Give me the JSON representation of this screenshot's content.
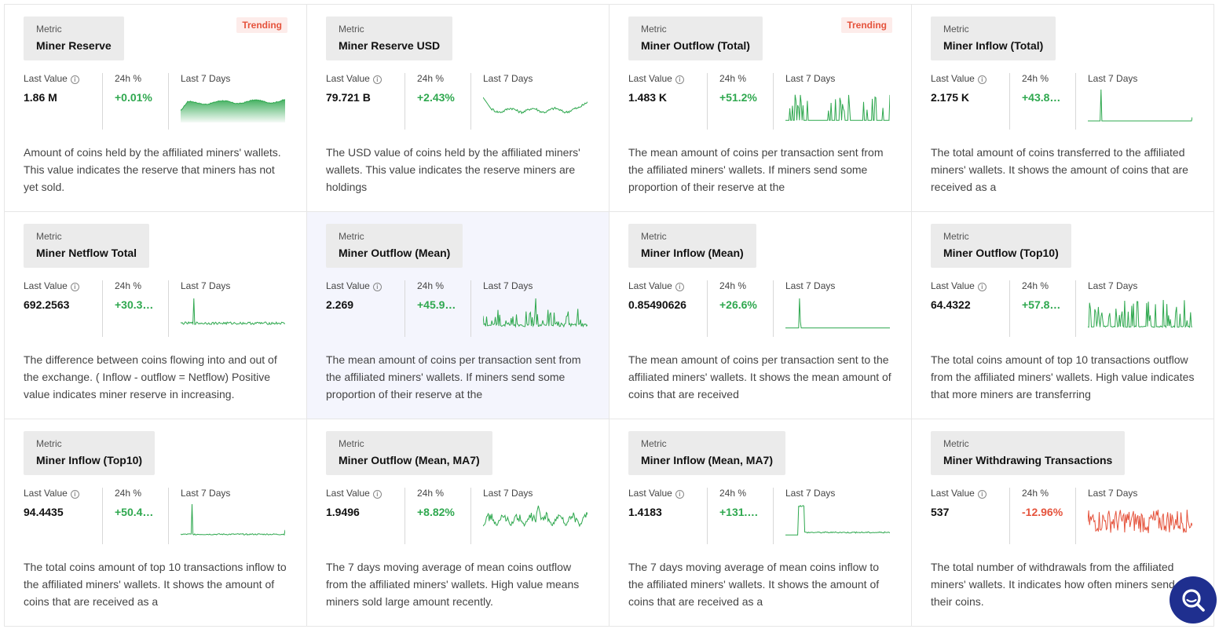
{
  "labels": {
    "category": "Metric",
    "last_value": "Last Value",
    "pct_24h": "24h %",
    "last_7_days": "Last 7 Days",
    "trending": "Trending"
  },
  "colors": {
    "up": "#2fa84f",
    "down": "#e5533c",
    "fab": "#1f2f8f"
  },
  "cards": [
    {
      "name": "Miner Reserve",
      "trending": true,
      "last_value": "1.86 M",
      "pct": "+0.01%",
      "direction": "up",
      "desc": "Amount of coins held by the affiliated miners' wallets. This value indicates the reserve that miners has not yet sold.",
      "spark": "area",
      "highlight": false
    },
    {
      "name": "Miner Reserve USD",
      "trending": false,
      "last_value": "79.721 B",
      "pct": "+2.43%",
      "direction": "up",
      "desc": "The USD value of coins held by the affiliated miners' wallets. This value indicates the reserve miners are holdings",
      "spark": "wave",
      "highlight": false
    },
    {
      "name": "Miner Outflow (Total)",
      "trending": true,
      "last_value": "1.483 K",
      "pct": "+51.2%",
      "direction": "up",
      "desc": "The mean amount of coins per transaction sent from the affiliated miners' wallets. If miners send some proportion of their reserve at the",
      "spark": "spiky",
      "highlight": false
    },
    {
      "name": "Miner Inflow (Total)",
      "trending": false,
      "last_value": "2.175 K",
      "pct": "+43.8…",
      "direction": "up",
      "desc": "The total amount of coins transferred to the affiliated miners' wallets. It shows the amount of coins that are received as a",
      "spark": "single",
      "highlight": false
    },
    {
      "name": "Miner Netflow Total",
      "trending": false,
      "last_value": "692.2563",
      "pct": "+30.3…",
      "direction": "up",
      "desc": "The difference between coins flowing into and out of the exchange. ( Inflow - outflow = Netflow) Positive value indicates miner reserve in increasing.",
      "spark": "netflow",
      "highlight": false
    },
    {
      "name": "Miner Outflow (Mean)",
      "trending": false,
      "last_value": "2.269",
      "pct": "+45.9…",
      "direction": "up",
      "desc": "The mean amount of coins per transaction sent from the affiliated miners' wallets. If miners send some proportion of their reserve at the",
      "spark": "spiky2",
      "highlight": true
    },
    {
      "name": "Miner Inflow (Mean)",
      "trending": false,
      "last_value": "0.85490626",
      "pct": "+26.6%",
      "direction": "up",
      "desc": "The mean amount of coins per transaction sent to the affiliated miners' wallets. It shows the mean amount of coins that are received",
      "spark": "single2",
      "highlight": false
    },
    {
      "name": "Miner Outflow (Top10)",
      "trending": false,
      "last_value": "64.4322",
      "pct": "+57.8…",
      "direction": "up",
      "desc": "The total coins amount of top 10 transactions outflow from the affiliated miners' wallets. High value indicates that more miners are transferring",
      "spark": "spiky3",
      "highlight": false
    },
    {
      "name": "Miner Inflow (Top10)",
      "trending": false,
      "last_value": "94.4435",
      "pct": "+50.4…",
      "direction": "up",
      "desc": "The total coins amount of top 10 transactions inflow to the affiliated miners' wallets. It shows the amount of coins that are received as a",
      "spark": "single3",
      "highlight": false
    },
    {
      "name": "Miner Outflow (Mean, MA7)",
      "trending": false,
      "last_value": "1.9496",
      "pct": "+8.82%",
      "direction": "up",
      "desc": "The 7 days moving average of mean coins outflow from the affiliated miners' wallets. High value means miners sold large amount recently.",
      "spark": "ma",
      "highlight": false
    },
    {
      "name": "Miner Inflow (Mean, MA7)",
      "trending": false,
      "last_value": "1.4183",
      "pct": "+131.…",
      "direction": "up",
      "desc": "The 7 days moving average of mean coins inflow to the affiliated miners' wallets. It shows the amount of coins that are received as a",
      "spark": "block",
      "highlight": false
    },
    {
      "name": "Miner Withdrawing Transactions",
      "trending": false,
      "last_value": "537",
      "pct": "-12.96%",
      "direction": "down",
      "desc": "The total number of withdrawals from the affiliated miners' wallets. It indicates how often miners send their coins.",
      "spark": "noise",
      "highlight": false
    }
  ]
}
